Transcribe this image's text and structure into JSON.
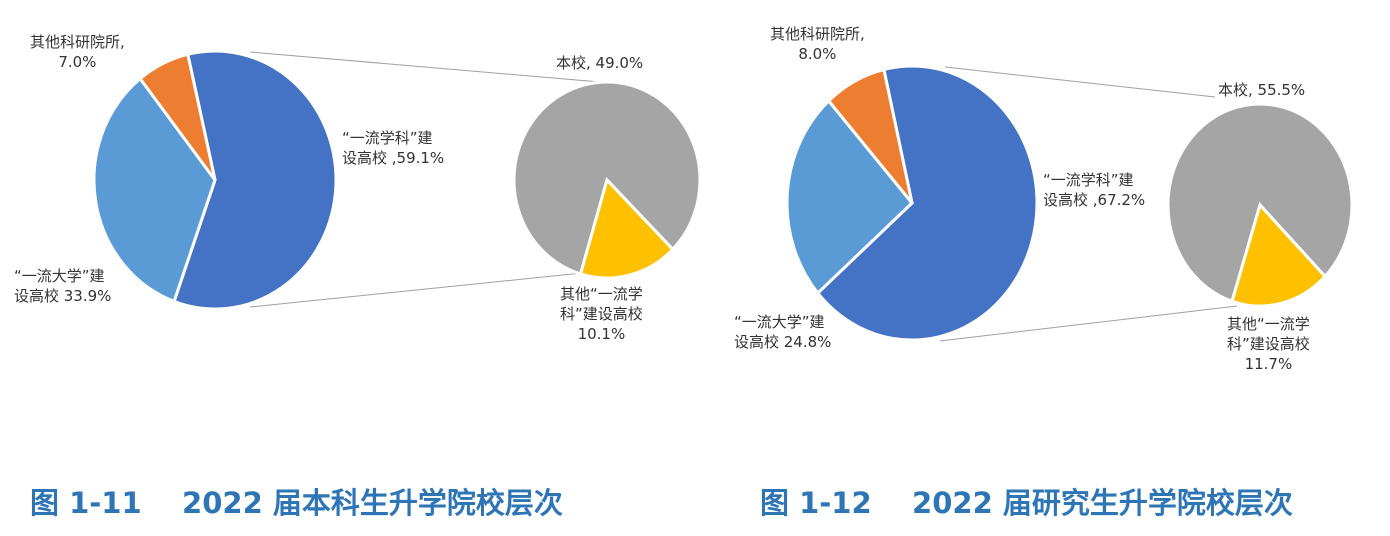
{
  "colors": {
    "first_class_discipline": "#4472c4",
    "first_class_university": "#5b9bd5",
    "research_institute": "#ed7d31",
    "own_school": "#a5a5a5",
    "other_discipline": "#ffc000",
    "connector": "#a0a0a0",
    "caption": "#2e75b6"
  },
  "chart_data": [
    {
      "type": "pie",
      "subtype": "pie-of-pie",
      "title": "图 1-11    2022 届本科生升学院校层次",
      "main": {
        "categories": [
          "“一流学科”建设高校",
          "“一流大学”建设高校",
          "其他科研院所"
        ],
        "values": [
          59.1,
          33.9,
          7.0
        ]
      },
      "sub": {
        "categories": [
          "本校",
          "其他“一流学科”建设高校"
        ],
        "values": [
          49.0,
          10.1
        ]
      },
      "labels": {
        "research": [
          "其他科研院所,",
          "7.0%"
        ],
        "discipline": [
          "“一流学科”建",
          "设高校 ,59.1%"
        ],
        "university": [
          "“一流大学”建",
          "设高校 33.9%"
        ],
        "own": [
          "本校, 49.0%"
        ],
        "other": [
          "其他“一流学",
          "科”建设高校",
          "10.1%"
        ]
      }
    },
    {
      "type": "pie",
      "subtype": "pie-of-pie",
      "title": "图 1-12    2022 届研究生升学院校层次",
      "main": {
        "categories": [
          "“一流学科”建设高校",
          "“一流大学”建设高校",
          "其他科研院所"
        ],
        "values": [
          67.2,
          24.8,
          8.0
        ]
      },
      "sub": {
        "categories": [
          "本校",
          "其他“一流学科”建设高校"
        ],
        "values": [
          55.5,
          11.7
        ]
      },
      "labels": {
        "research": [
          "其他科研院所,",
          "8.0%"
        ],
        "discipline": [
          "“一流学科”建",
          "设高校 ,67.2%"
        ],
        "university": [
          "“一流大学”建",
          "设高校 24.8%"
        ],
        "own": [
          "本校, 55.5%"
        ],
        "other": [
          "其他“一流学",
          "科”建设高校",
          "11.7%"
        ]
      }
    }
  ]
}
